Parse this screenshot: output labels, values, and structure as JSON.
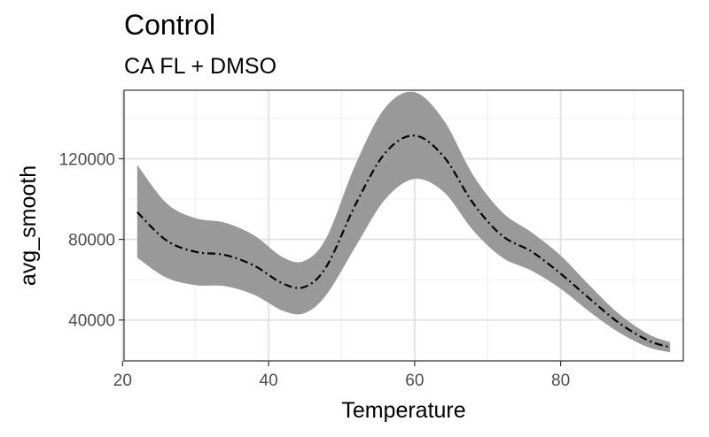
{
  "chart_data": {
    "type": "line",
    "title": "Control",
    "subtitle": "CA FL + DMSO",
    "xlabel": "Temperature",
    "ylabel": "avg_smooth",
    "xlim": [
      20.2,
      96.8
    ],
    "ylim": [
      19700,
      154000
    ],
    "x_ticks": [
      20,
      40,
      60,
      80
    ],
    "x_minor_ticks": [
      30,
      50,
      70,
      90
    ],
    "y_ticks": [
      40000,
      80000,
      120000
    ],
    "y_minor_ticks": [
      20000,
      60000,
      100000,
      140000
    ],
    "x_tick_labels": [
      "20",
      "40",
      "60",
      "80"
    ],
    "y_tick_labels": [
      "40000",
      "80000",
      "120000"
    ],
    "grid": true,
    "series": [
      {
        "line_style": "dashdot",
        "line_color": "#000000",
        "band_color": "#999999",
        "points": [
          {
            "x": 22,
            "y": 93500,
            "lower": 70900,
            "upper": 117000
          },
          {
            "x": 26,
            "y": 79500,
            "lower": 61000,
            "upper": 98000
          },
          {
            "x": 30,
            "y": 73800,
            "lower": 57300,
            "upper": 90500
          },
          {
            "x": 34,
            "y": 72300,
            "lower": 56800,
            "upper": 88300
          },
          {
            "x": 38,
            "y": 67000,
            "lower": 52500,
            "upper": 82000
          },
          {
            "x": 42,
            "y": 58000,
            "lower": 44500,
            "upper": 71000
          },
          {
            "x": 45,
            "y": 56500,
            "lower": 43500,
            "upper": 69500
          },
          {
            "x": 48,
            "y": 67000,
            "lower": 53000,
            "upper": 81500
          },
          {
            "x": 52,
            "y": 98000,
            "lower": 77000,
            "upper": 118000
          },
          {
            "x": 56,
            "y": 123000,
            "lower": 100000,
            "upper": 145500
          },
          {
            "x": 60,
            "y": 131500,
            "lower": 110000,
            "upper": 153000
          },
          {
            "x": 64,
            "y": 121000,
            "lower": 103500,
            "upper": 139000
          },
          {
            "x": 68,
            "y": 98000,
            "lower": 84500,
            "upper": 112000
          },
          {
            "x": 72,
            "y": 81800,
            "lower": 71000,
            "upper": 93500
          },
          {
            "x": 76,
            "y": 74000,
            "lower": 64500,
            "upper": 83500
          },
          {
            "x": 80,
            "y": 63000,
            "lower": 55500,
            "upper": 72000
          },
          {
            "x": 84,
            "y": 50500,
            "lower": 44000,
            "upper": 57000
          },
          {
            "x": 88,
            "y": 38500,
            "lower": 33800,
            "upper": 43000
          },
          {
            "x": 92,
            "y": 29800,
            "lower": 26500,
            "upper": 33000
          },
          {
            "x": 95,
            "y": 26500,
            "lower": 24000,
            "upper": 29000
          }
        ]
      }
    ]
  }
}
